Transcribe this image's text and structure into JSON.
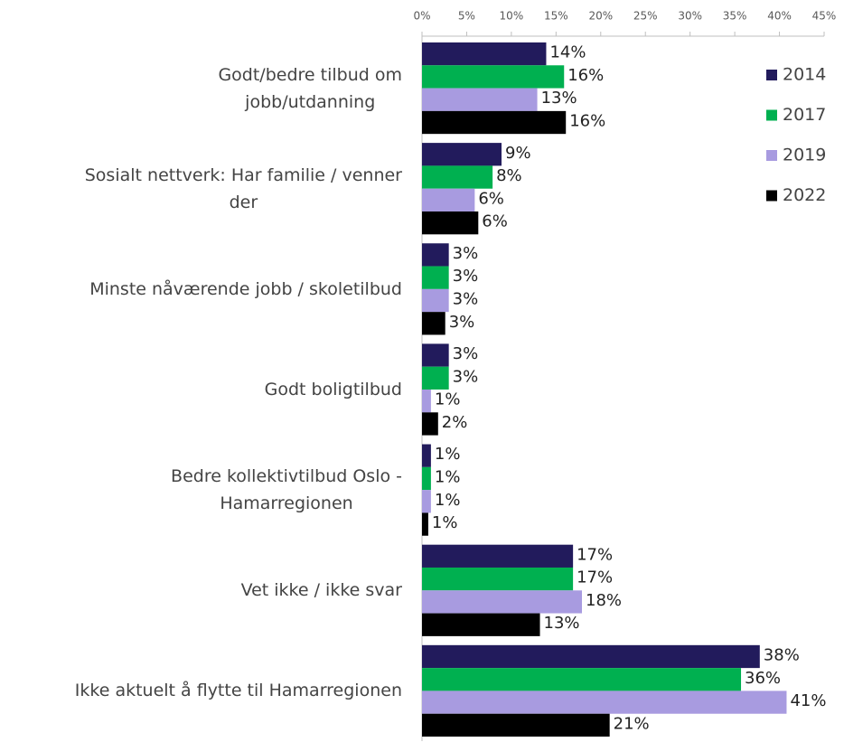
{
  "chart_data": {
    "type": "barh",
    "categories": [
      "Godt/bedre tilbud om\njobb/utdanning",
      "Sosialt nettverk: Har familie / venner\nder",
      "Minste nåværende jobb / skoletilbud",
      "Godt boligtilbud",
      "Bedre kollektivtilbud Oslo -\nHamarregionen",
      "Vet ikke / ikke svar",
      "Ikke aktuelt å flytte til Hamarregionen"
    ],
    "series": [
      {
        "name": "2014",
        "color": "#221b5c",
        "values": [
          13.9,
          8.9,
          3.0,
          3.0,
          1.0,
          16.9,
          37.8
        ],
        "value_labels": [
          "14%",
          "9%",
          "3%",
          "3%",
          "1%",
          "17%",
          "38%"
        ]
      },
      {
        "name": "2017",
        "color": "#00b050",
        "values": [
          15.9,
          7.9,
          3.0,
          3.0,
          1.0,
          16.9,
          35.7
        ],
        "value_labels": [
          "16%",
          "8%",
          "3%",
          "3%",
          "1%",
          "17%",
          "36%"
        ]
      },
      {
        "name": "2019",
        "color": "#a89be0",
        "values": [
          12.9,
          5.9,
          3.0,
          1.0,
          1.0,
          17.9,
          40.8
        ],
        "value_labels": [
          "13%",
          "6%",
          "3%",
          "1%",
          "1%",
          "18%",
          "41%"
        ]
      },
      {
        "name": "2022",
        "color": "#000000",
        "values": [
          16.1,
          6.3,
          2.6,
          1.8,
          0.7,
          13.2,
          21.0
        ],
        "value_labels": [
          "16%",
          "6%",
          "3%",
          "2%",
          "1%",
          "13%",
          "21%"
        ]
      }
    ],
    "xlim": [
      0,
      45
    ],
    "xticks": [
      {
        "value": 0,
        "label": "0%"
      },
      {
        "value": 5,
        "label": "5%"
      },
      {
        "value": 10,
        "label": "10%"
      },
      {
        "value": 15,
        "label": "15%"
      },
      {
        "value": 20,
        "label": "20%"
      },
      {
        "value": 25,
        "label": "25%"
      },
      {
        "value": 30,
        "label": "30%"
      },
      {
        "value": 35,
        "label": "35%"
      },
      {
        "value": 40,
        "label": "40%"
      },
      {
        "value": 45,
        "label": "45%"
      }
    ],
    "legend": "right"
  }
}
